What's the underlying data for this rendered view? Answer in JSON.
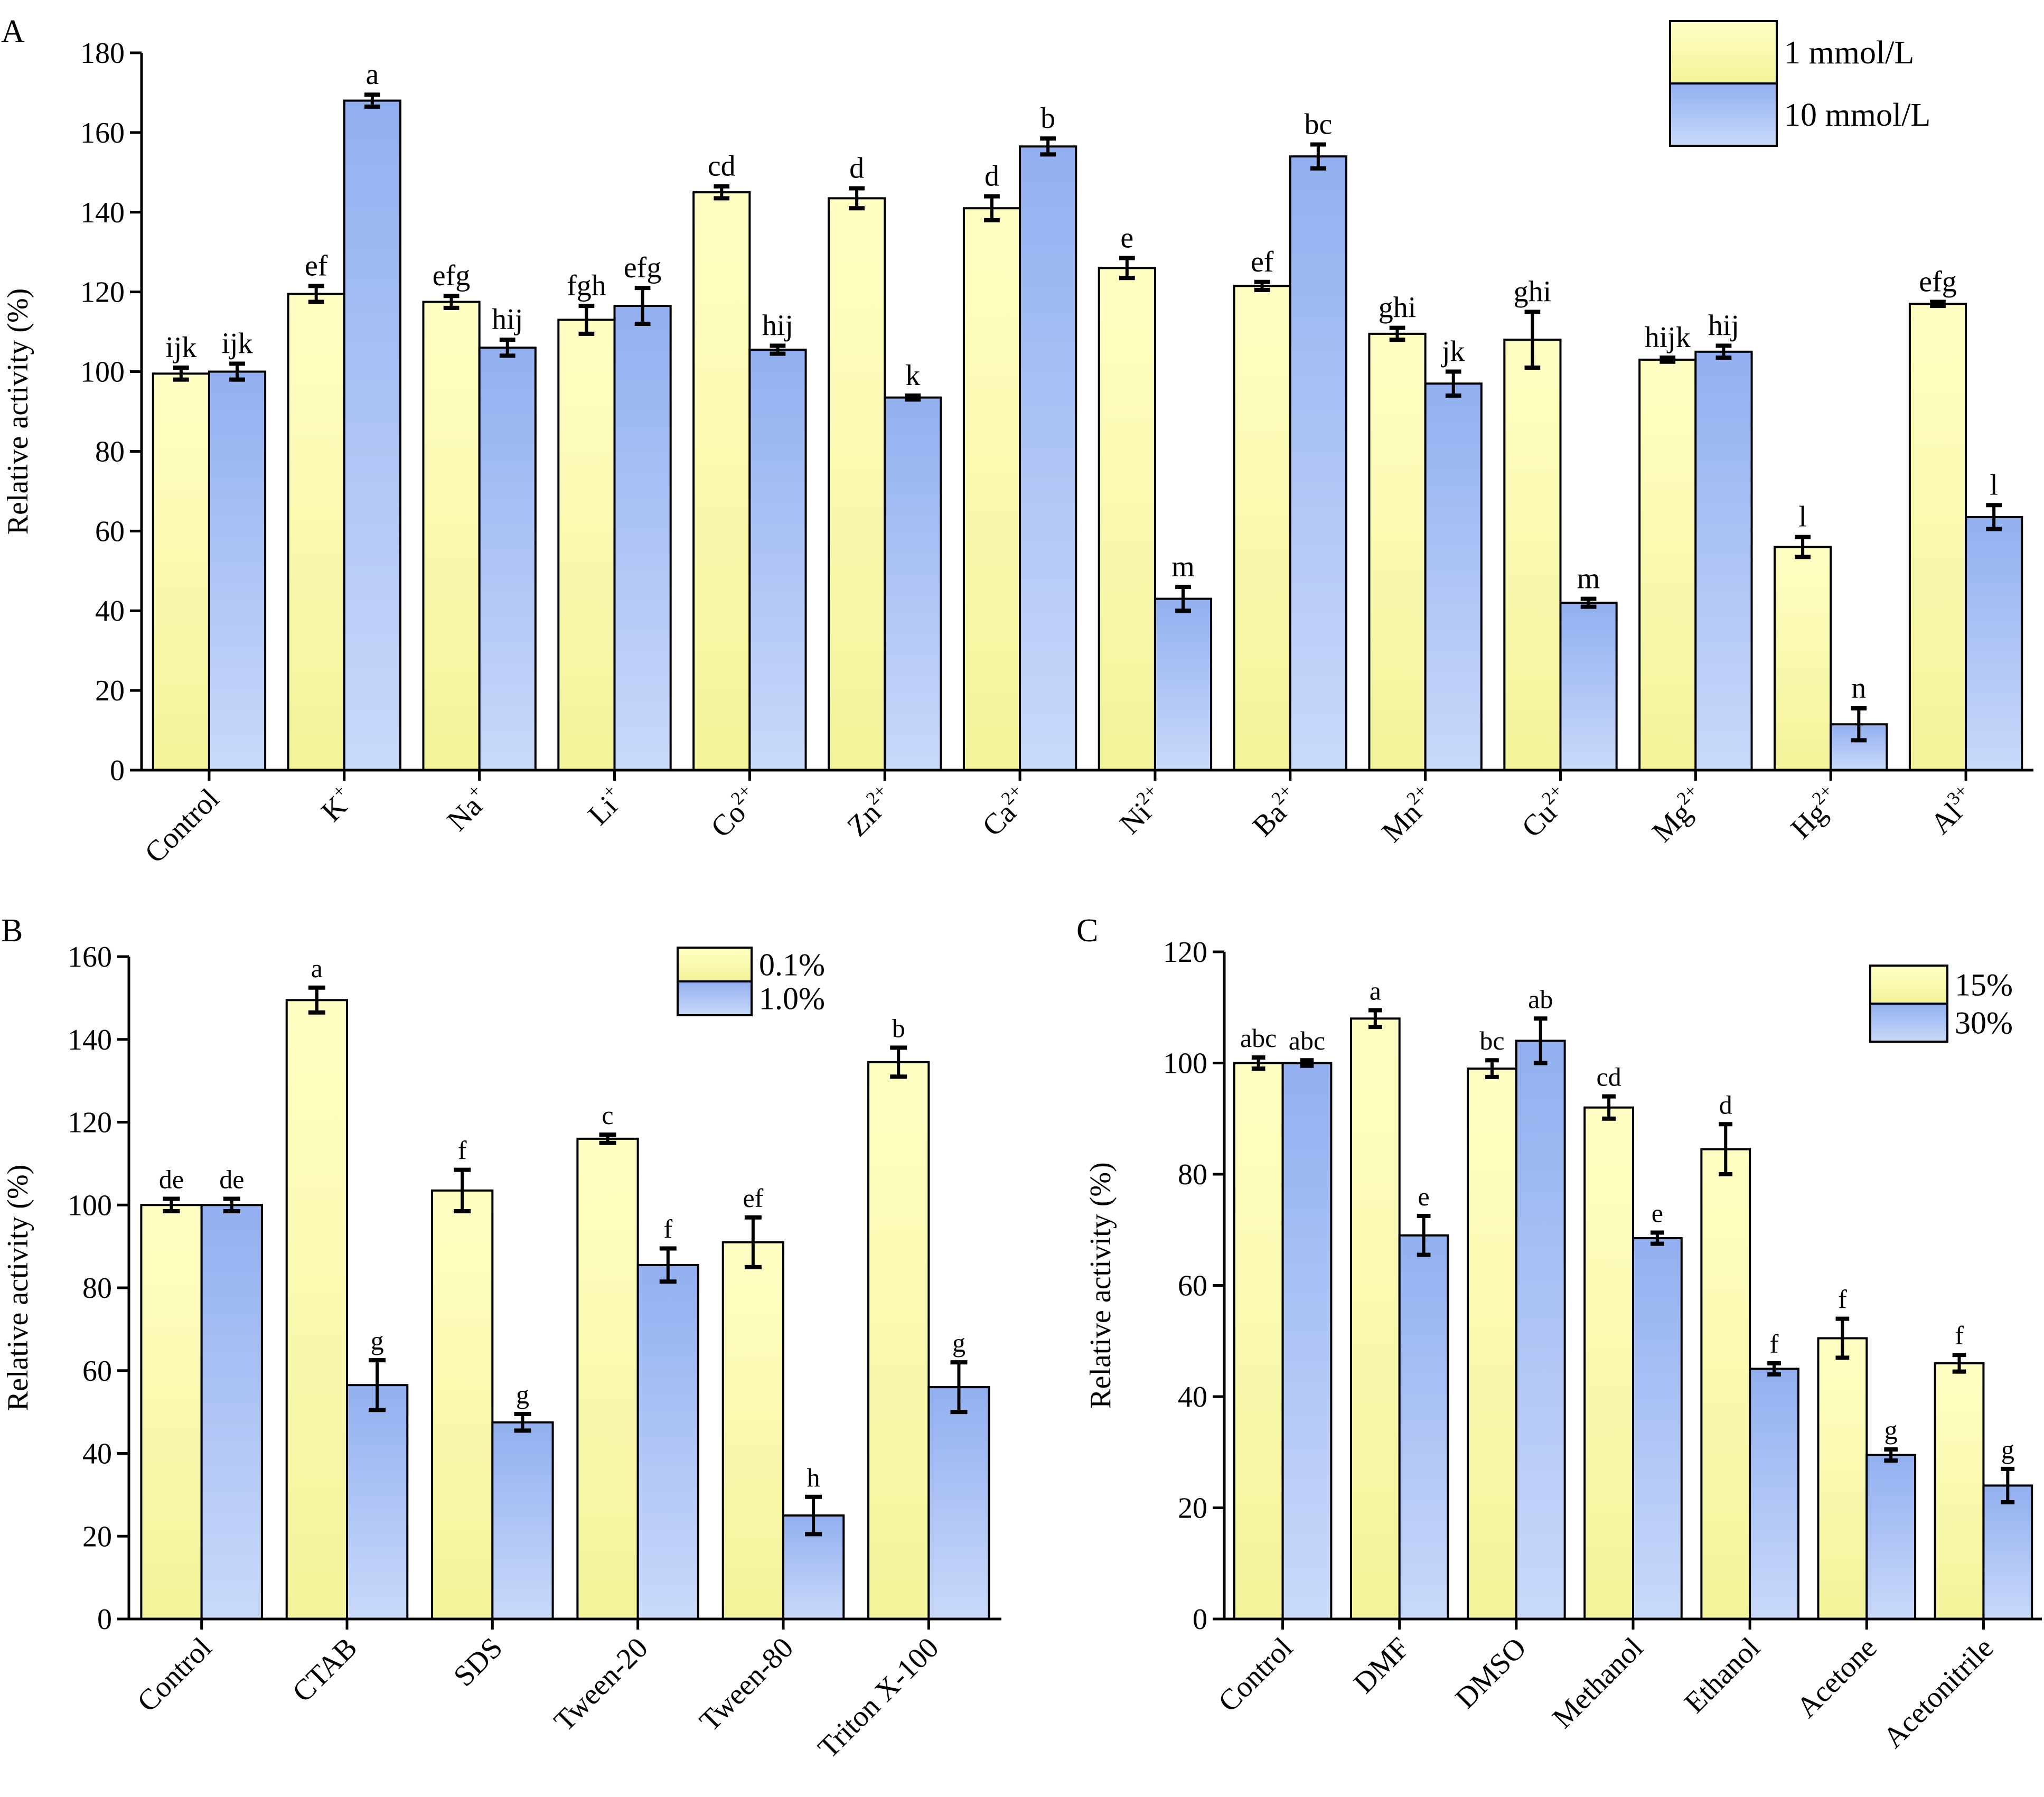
{
  "colors": {
    "yellow_top": "#ffffc4",
    "yellow_bottom": "#f3f39a",
    "blue_top": "#92b0f0",
    "blue_bottom": "#c9d9fa",
    "stroke": "#000000"
  },
  "chart_data": [
    {
      "panel": "A",
      "type": "bar",
      "ylabel": "Relative activity (%)",
      "ylim": [
        0,
        180
      ],
      "yticks": [
        "0",
        "20",
        "40",
        "60",
        "80",
        "100",
        "120",
        "140",
        "160",
        "180"
      ],
      "categories": [
        {
          "base": "Control",
          "sup": ""
        },
        {
          "base": "K",
          "sup": "+"
        },
        {
          "base": "Na",
          "sup": "+"
        },
        {
          "base": "Li",
          "sup": "+"
        },
        {
          "base": "Co",
          "sup": "2+"
        },
        {
          "base": "Zn",
          "sup": "2+"
        },
        {
          "base": "Ca",
          "sup": "2+"
        },
        {
          "base": "Ni",
          "sup": "2+"
        },
        {
          "base": "Ba",
          "sup": "2+"
        },
        {
          "base": "Mn",
          "sup": "2+"
        },
        {
          "base": "Cu",
          "sup": "2+"
        },
        {
          "base": "Mg",
          "sup": "2+"
        },
        {
          "base": "Hg",
          "sup": "2+"
        },
        {
          "base": "Al",
          "sup": "3+"
        }
      ],
      "legend_position": "top-right",
      "series": [
        {
          "name": "1 mmol/L",
          "values": [
            99.5,
            119.5,
            117.5,
            113,
            145,
            143.5,
            141,
            126,
            121.5,
            109.5,
            108,
            103,
            56,
            117
          ],
          "errors": [
            1.5,
            2,
            1.5,
            3.5,
            1.5,
            2.5,
            3,
            2.5,
            1,
            1.5,
            7,
            0.5,
            2.5,
            0.5
          ],
          "labels": [
            "ijk",
            "ef",
            "efg",
            "fgh",
            "cd",
            "d",
            "d",
            "e",
            "ef",
            "ghi",
            "ghi",
            "hijk",
            "l",
            "efg"
          ]
        },
        {
          "name": "10 mmol/L",
          "values": [
            100,
            168,
            106,
            116.5,
            105.5,
            93.5,
            156.5,
            43,
            154,
            97,
            42,
            105,
            11.5,
            63.5
          ],
          "errors": [
            2,
            1.5,
            2,
            4.5,
            1,
            0.5,
            2,
            3,
            3,
            3,
            1,
            1.5,
            4,
            3
          ],
          "labels": [
            "ijk",
            "a",
            "hij",
            "efg",
            "hij",
            "k",
            "b",
            "m",
            "bc",
            "jk",
            "m",
            "hij",
            "n",
            "l"
          ]
        }
      ]
    },
    {
      "panel": "B",
      "type": "bar",
      "ylabel": "Relative activity (%)",
      "ylim": [
        0,
        160
      ],
      "yticks": [
        "0",
        "20",
        "40",
        "60",
        "80",
        "100",
        "120",
        "140",
        "160"
      ],
      "categories": [
        {
          "base": "Control",
          "sup": ""
        },
        {
          "base": "CTAB",
          "sup": ""
        },
        {
          "base": "SDS",
          "sup": ""
        },
        {
          "base": "Tween-20",
          "sup": ""
        },
        {
          "base": "Tween-80",
          "sup": ""
        },
        {
          "base": "Triton X-100",
          "sup": ""
        }
      ],
      "legend_position": "top-right",
      "series": [
        {
          "name": "0.1%",
          "values": [
            100,
            149.5,
            103.5,
            116,
            91,
            134.5
          ],
          "errors": [
            1.5,
            3,
            5,
            1,
            6,
            3.5
          ],
          "labels": [
            "de",
            "a",
            "f",
            "c",
            "ef",
            "b"
          ]
        },
        {
          "name": "1.0%",
          "values": [
            100,
            56.5,
            47.5,
            85.5,
            25,
            56
          ],
          "errors": [
            1.5,
            6,
            2,
            4,
            4.5,
            6
          ],
          "labels": [
            "de",
            "g",
            "g",
            "f",
            "h",
            "g"
          ]
        }
      ]
    },
    {
      "panel": "C",
      "type": "bar",
      "ylabel": "Relative activity (%)",
      "ylim": [
        0,
        120
      ],
      "yticks": [
        "0",
        "20",
        "40",
        "60",
        "80",
        "100",
        "120"
      ],
      "categories": [
        {
          "base": "Control",
          "sup": ""
        },
        {
          "base": "DMF",
          "sup": ""
        },
        {
          "base": "DMSO",
          "sup": ""
        },
        {
          "base": "Methanol",
          "sup": ""
        },
        {
          "base": "Ethanol",
          "sup": ""
        },
        {
          "base": "Acetone",
          "sup": ""
        },
        {
          "base": "Acetonitrile",
          "sup": ""
        }
      ],
      "legend_position": "top-right",
      "series": [
        {
          "name": "15%",
          "values": [
            100,
            108,
            99,
            92,
            84.5,
            50.5,
            46
          ],
          "errors": [
            1,
            1.5,
            1.5,
            2,
            4.5,
            3.5,
            1.5
          ],
          "labels": [
            "abc",
            "a",
            "bc",
            "cd",
            "d",
            "f",
            "f"
          ]
        },
        {
          "name": "30%",
          "values": [
            100,
            69,
            104,
            68.5,
            45,
            29.5,
            24
          ],
          "errors": [
            0.5,
            3.5,
            4,
            1,
            1,
            1,
            3
          ],
          "labels": [
            "abc",
            "e",
            "ab",
            "e",
            "f",
            "g",
            "g"
          ]
        }
      ]
    }
  ]
}
